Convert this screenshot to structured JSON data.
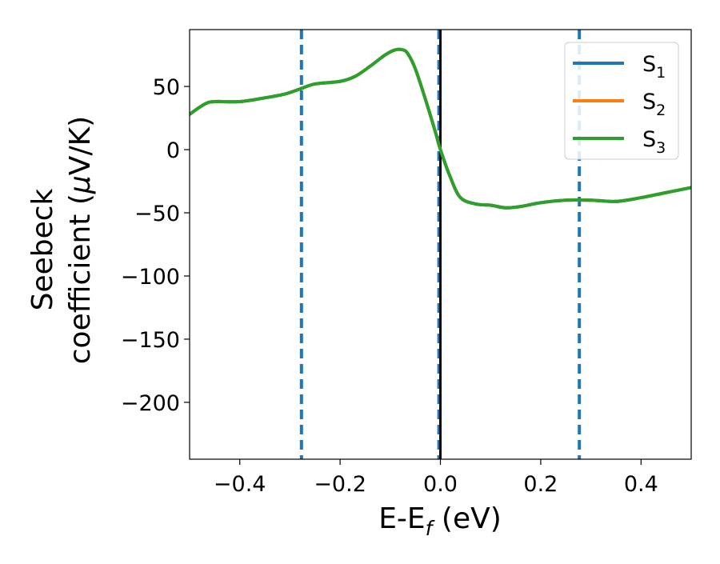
{
  "chart_data": {
    "type": "line",
    "title": "",
    "xlabel": "E-E",
    "xlabel_sub": "f",
    "xlabel_unit": " (eV)",
    "ylabel_line1": "Seebeck",
    "ylabel_line2": "coefficient  (",
    "ylabel_mu": "μ",
    "ylabel_unit": "V/K)",
    "xlim": [
      -0.5,
      0.5
    ],
    "ylim": [
      -245,
      95
    ],
    "grid": false,
    "legend_position": "top-right",
    "xticks": [
      -0.4,
      -0.2,
      0.0,
      0.2,
      0.4
    ],
    "xtick_labels": [
      "−0.4",
      "−0.2",
      "0.0",
      "0.2",
      "0.4"
    ],
    "yticks": [
      50,
      0,
      -50,
      -100,
      -150,
      -200
    ],
    "ytick_labels": [
      "50",
      "0",
      "−50",
      "−100",
      "−150",
      "−200"
    ],
    "series": [
      {
        "name": "S",
        "name_sub": "1",
        "color": "#1f77b4",
        "x": [
          -0.5,
          -0.47,
          -0.45,
          -0.4,
          -0.35,
          -0.31,
          -0.28,
          -0.25,
          -0.2,
          -0.17,
          -0.14,
          -0.11,
          -0.09,
          -0.075,
          -0.065,
          -0.05,
          -0.03,
          -0.01,
          0.0,
          0.02,
          0.04,
          0.07,
          0.1,
          0.13,
          0.16,
          0.2,
          0.25,
          0.3,
          0.35,
          0.4,
          0.45,
          0.5
        ],
        "y": [
          28,
          36,
          38,
          38,
          41,
          44,
          48,
          52,
          54,
          58,
          66,
          75,
          79,
          79,
          76,
          64,
          40,
          14,
          0,
          -22,
          -38,
          -43,
          -44,
          -46,
          -45,
          -42,
          -40,
          -40,
          -41,
          -38,
          -34,
          -30
        ]
      },
      {
        "name": "S",
        "name_sub": "2",
        "color": "#ff7f0e",
        "x": [
          -0.5,
          -0.47,
          -0.45,
          -0.4,
          -0.35,
          -0.31,
          -0.28,
          -0.25,
          -0.2,
          -0.17,
          -0.14,
          -0.11,
          -0.09,
          -0.075,
          -0.065,
          -0.05,
          -0.03,
          -0.01,
          0.0,
          0.02,
          0.04,
          0.07,
          0.1,
          0.13,
          0.16,
          0.2,
          0.25,
          0.3,
          0.35,
          0.4,
          0.45,
          0.5
        ],
        "y": [
          28,
          36,
          38,
          38,
          41,
          44,
          48,
          52,
          54,
          58,
          66,
          75,
          79,
          79,
          76,
          64,
          40,
          14,
          0,
          -22,
          -38,
          -43,
          -44,
          -46,
          -45,
          -42,
          -40,
          -40,
          -41,
          -38,
          -34,
          -30
        ]
      },
      {
        "name": "S",
        "name_sub": "3",
        "color": "#2ca02c",
        "x": [
          -0.5,
          -0.47,
          -0.45,
          -0.4,
          -0.35,
          -0.31,
          -0.28,
          -0.25,
          -0.2,
          -0.17,
          -0.14,
          -0.11,
          -0.09,
          -0.075,
          -0.065,
          -0.05,
          -0.03,
          -0.01,
          0.0,
          0.02,
          0.04,
          0.07,
          0.1,
          0.13,
          0.16,
          0.2,
          0.25,
          0.3,
          0.35,
          0.4,
          0.45,
          0.5
        ],
        "y": [
          28,
          36,
          38,
          38,
          41,
          44,
          48,
          52,
          54,
          58,
          66,
          75,
          79,
          79,
          76,
          64,
          40,
          14,
          0,
          -22,
          -38,
          -43,
          -44,
          -46,
          -45,
          -42,
          -40,
          -40,
          -41,
          -38,
          -34,
          -30
        ]
      }
    ],
    "vlines": [
      {
        "x": -0.277,
        "color": "#1f77b4",
        "style": "dashed"
      },
      {
        "x": -0.003,
        "color": "#1f77b4",
        "style": "dashed"
      },
      {
        "x": 0.277,
        "color": "#1f77b4",
        "style": "dashed"
      },
      {
        "x": 0.0,
        "color": "#000000",
        "style": "solid"
      }
    ]
  }
}
